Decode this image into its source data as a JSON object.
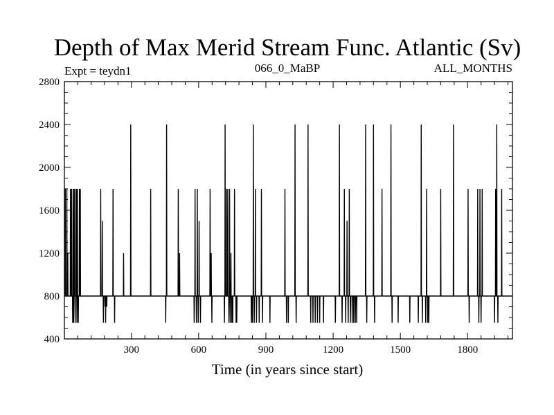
{
  "chart_data": {
    "type": "line",
    "title": "Depth of Max Merid Stream Func. Atlantic (Sv)",
    "annotations": {
      "left": "Expt = teydn1",
      "center": "066_0_MaBP",
      "right": "ALL_MONTHS"
    },
    "xlabel": "Time (in years since start)",
    "ylabel": "",
    "xlim": [
      1,
      2000
    ],
    "ylim": [
      400,
      2800
    ],
    "xticks": [
      300,
      600,
      900,
      1200,
      1500,
      1800
    ],
    "yticks": [
      400,
      800,
      1200,
      1600,
      2000,
      2400,
      2800
    ],
    "grid": false,
    "legend": "none",
    "color": "#000000",
    "baseline": 800,
    "series": [
      {
        "x": [
          1,
          1000,
          2000
        ],
        "y": [
          800,
          800,
          800
        ],
        "spikes": [
          [
            5,
            1800
          ],
          [
            12,
            1800
          ],
          [
            16,
            1200
          ],
          [
            28,
            1800
          ],
          [
            33,
            1800
          ],
          [
            38,
            550
          ],
          [
            40,
            1800
          ],
          [
            42,
            550
          ],
          [
            45,
            1800
          ],
          [
            49,
            550
          ],
          [
            52,
            1800
          ],
          [
            55,
            1800
          ],
          [
            57,
            550
          ],
          [
            59,
            1800
          ],
          [
            63,
            550
          ],
          [
            68,
            1800
          ],
          [
            72,
            1800
          ],
          [
            163,
            1800
          ],
          [
            170,
            1500
          ],
          [
            175,
            550
          ],
          [
            182,
            700
          ],
          [
            185,
            550
          ],
          [
            190,
            700
          ],
          [
            196,
            800
          ],
          [
            218,
            1800
          ],
          [
            225,
            550
          ],
          [
            265,
            1200
          ],
          [
            297,
            2400
          ],
          [
            386,
            1800
          ],
          [
            453,
            550
          ],
          [
            457,
            2400
          ],
          [
            509,
            1800
          ],
          [
            515,
            1200
          ],
          [
            580,
            550
          ],
          [
            584,
            1800
          ],
          [
            590,
            550
          ],
          [
            594,
            1800
          ],
          [
            598,
            550
          ],
          [
            602,
            1500
          ],
          [
            608,
            550
          ],
          [
            651,
            1800
          ],
          [
            656,
            1200
          ],
          [
            659,
            550
          ],
          [
            715,
            550
          ],
          [
            718,
            2400
          ],
          [
            725,
            1800
          ],
          [
            730,
            1800
          ],
          [
            735,
            550
          ],
          [
            738,
            1800
          ],
          [
            741,
            550
          ],
          [
            744,
            1200
          ],
          [
            748,
            550
          ],
          [
            752,
            550
          ],
          [
            760,
            1800
          ],
          [
            767,
            550
          ],
          [
            770,
            550
          ],
          [
            835,
            550
          ],
          [
            840,
            550
          ],
          [
            844,
            2400
          ],
          [
            848,
            550
          ],
          [
            853,
            1800
          ],
          [
            858,
            550
          ],
          [
            870,
            550
          ],
          [
            875,
            800
          ],
          [
            880,
            1800
          ],
          [
            885,
            550
          ],
          [
            918,
            550
          ],
          [
            985,
            1800
          ],
          [
            992,
            550
          ],
          [
            1000,
            550
          ],
          [
            1030,
            2400
          ],
          [
            1035,
            550
          ],
          [
            1088,
            2400
          ],
          [
            1100,
            550
          ],
          [
            1110,
            550
          ],
          [
            1120,
            550
          ],
          [
            1130,
            550
          ],
          [
            1140,
            550
          ],
          [
            1157,
            550
          ],
          [
            1210,
            550
          ],
          [
            1228,
            2400
          ],
          [
            1240,
            550
          ],
          [
            1250,
            1800
          ],
          [
            1256,
            550
          ],
          [
            1262,
            1500
          ],
          [
            1267,
            550
          ],
          [
            1272,
            1800
          ],
          [
            1277,
            550
          ],
          [
            1280,
            800
          ],
          [
            1285,
            550
          ],
          [
            1292,
            550
          ],
          [
            1299,
            550
          ],
          [
            1305,
            550
          ],
          [
            1345,
            2400
          ],
          [
            1350,
            550
          ],
          [
            1380,
            2400
          ],
          [
            1385,
            550
          ],
          [
            1418,
            1800
          ],
          [
            1458,
            2400
          ],
          [
            1463,
            550
          ],
          [
            1490,
            550
          ],
          [
            1542,
            550
          ],
          [
            1580,
            550
          ],
          [
            1593,
            2400
          ],
          [
            1598,
            550
          ],
          [
            1600,
            800
          ],
          [
            1613,
            550
          ],
          [
            1617,
            1800
          ],
          [
            1622,
            550
          ],
          [
            1627,
            550
          ],
          [
            1680,
            1800
          ],
          [
            1737,
            2400
          ],
          [
            1802,
            1800
          ],
          [
            1807,
            550
          ],
          [
            1845,
            1800
          ],
          [
            1850,
            550
          ],
          [
            1855,
            1800
          ],
          [
            1860,
            550
          ],
          [
            1865,
            1800
          ],
          [
            1920,
            550
          ],
          [
            1925,
            1800
          ],
          [
            1930,
            2400
          ],
          [
            1935,
            550
          ],
          [
            1952,
            1800
          ]
        ]
      }
    ]
  }
}
